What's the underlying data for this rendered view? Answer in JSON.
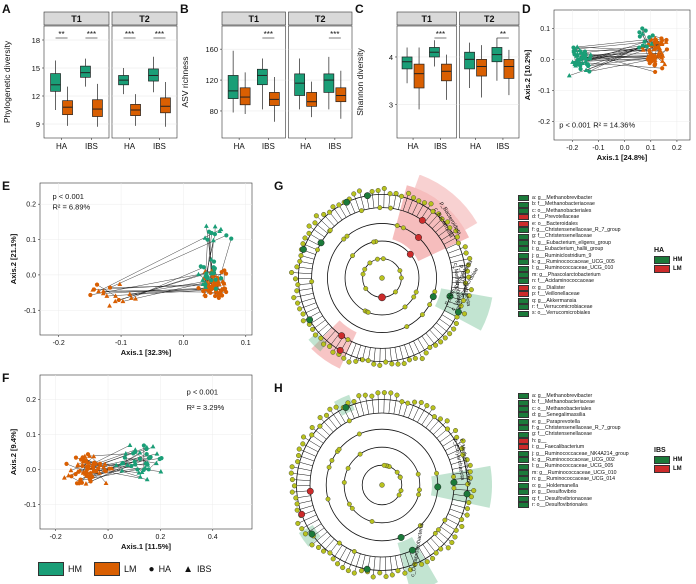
{
  "panels": {
    "A": {
      "label": "A",
      "ylabel": "Phylogenetic diversity",
      "facets": [
        "T1",
        "T2"
      ],
      "xticks": [
        "HA",
        "IBS"
      ],
      "yticks": [
        "9",
        "12",
        "15",
        "18"
      ],
      "ylim": [
        7.5,
        19.5
      ],
      "sig": [
        [
          "**",
          "***"
        ],
        [
          "***",
          "***"
        ]
      ],
      "boxes": [
        [
          [
            10.5,
            12.5,
            13.2,
            14.4,
            15.8
          ],
          [
            8.8,
            10.0,
            10.8,
            11.5,
            13.0
          ],
          [
            13.0,
            14.0,
            14.5,
            15.2,
            16.0
          ],
          [
            8.7,
            9.8,
            10.6,
            11.6,
            13.3
          ]
        ],
        [
          [
            12.2,
            13.2,
            13.7,
            14.2,
            15.0
          ],
          [
            8.8,
            9.9,
            10.5,
            11.1,
            12.2
          ],
          [
            12.4,
            13.6,
            14.2,
            14.9,
            16.2
          ],
          [
            8.7,
            10.2,
            10.9,
            11.8,
            13.5
          ]
        ]
      ]
    },
    "B": {
      "label": "B",
      "ylabel": "ASV richness",
      "facets": [
        "T1",
        "T2"
      ],
      "xticks": [
        "HA",
        "IBS"
      ],
      "yticks": [
        "80",
        "120",
        "160"
      ],
      "ylim": [
        45,
        190
      ],
      "sig": [
        [
          "",
          "***"
        ],
        [
          "",
          "***"
        ]
      ],
      "boxes": [
        [
          [
            78,
            96,
            106,
            126,
            158
          ],
          [
            76,
            88,
            98,
            110,
            130
          ],
          [
            82,
            114,
            126,
            134,
            148
          ],
          [
            66,
            87,
            95,
            104,
            124
          ]
        ],
        [
          [
            82,
            100,
            116,
            128,
            148
          ],
          [
            72,
            86,
            92,
            104,
            118
          ],
          [
            82,
            104,
            120,
            128,
            150
          ],
          [
            70,
            92,
            100,
            110,
            132
          ]
        ]
      ]
    },
    "C": {
      "label": "C",
      "ylabel": "Shannon diversity",
      "facets": [
        "T1",
        "T2"
      ],
      "xticks": [
        "HA",
        "IBS"
      ],
      "yticks": [
        "3",
        "4"
      ],
      "ylim": [
        2.3,
        4.65
      ],
      "sig": [
        [
          "",
          "***"
        ],
        [
          "",
          "**"
        ]
      ],
      "boxes": [
        [
          [
            3.45,
            3.75,
            3.9,
            4.0,
            4.2
          ],
          [
            2.9,
            3.35,
            3.65,
            3.85,
            4.2
          ],
          [
            3.8,
            4.0,
            4.1,
            4.2,
            4.35
          ],
          [
            3.1,
            3.5,
            3.7,
            3.85,
            4.05
          ]
        ],
        [
          [
            3.35,
            3.75,
            3.95,
            4.1,
            4.3
          ],
          [
            3.15,
            3.6,
            3.8,
            3.95,
            4.25
          ],
          [
            3.5,
            3.9,
            4.05,
            4.2,
            4.4
          ],
          [
            3.2,
            3.55,
            3.8,
            3.95,
            4.15
          ]
        ]
      ]
    },
    "D": {
      "label": "D",
      "xlabel": "Axis.1   [24.8%]",
      "ylabel": "Axis.2   [10.2%]",
      "pval": "p < 0.001",
      "r2": "R² = 14.36%",
      "xticks": [
        "-0.2",
        "-0.1",
        "0.0",
        "0.1",
        "0.2"
      ],
      "yticks": [
        "-0.2",
        "-0.1",
        "0.0",
        "0.1"
      ]
    },
    "E": {
      "label": "E",
      "xlabel": "Axis.1   [32.3%]",
      "ylabel": "Axis.2   [21.1%]",
      "pval": "p < 0.001",
      "r2": "R² = 6.89%",
      "xticks": [
        "-0.2",
        "-0.1",
        "0.0",
        "0.1"
      ],
      "yticks": [
        "-0.1",
        "0.0",
        "0.1",
        "0.2"
      ]
    },
    "F": {
      "label": "F",
      "xlabel": "Axis.1   [11.5%]",
      "ylabel": "Axis.2   [9.4%]",
      "pval": "p < 0.001",
      "r2": "R² = 3.29%",
      "xticks": [
        "-0.2",
        "0.0",
        "0.2",
        "0.4"
      ],
      "yticks": [
        "-0.1",
        "0.0",
        "0.1",
        "0.2"
      ]
    },
    "G": {
      "label": "G",
      "group_title": "HA",
      "group_items": [
        "HM",
        "LM"
      ],
      "clade_labels": [
        "p_Bacteroidota",
        "c_Bacteroidia",
        "c_Methanobacteria",
        "p_Euryarchaeota",
        "p_Verrucomicrobiota",
        "c_Verrucomicrobiae",
        "d"
      ],
      "legend": [
        {
          "text": "a: g__Methanobrevibacter",
          "c": "green"
        },
        {
          "text": "b: f__Methanobacteriaceae",
          "c": "green"
        },
        {
          "text": "c: o__Methanobacteriales",
          "c": "green"
        },
        {
          "text": "d: f__Prevotellaceae",
          "c": "red"
        },
        {
          "text": "e: o__Bacteroidales",
          "c": "red"
        },
        {
          "text": "f: g__Christensenellaceae_R_7_group",
          "c": "green"
        },
        {
          "text": "g: f__Christensenellaceae",
          "c": "green"
        },
        {
          "text": "h: g__Eubacterium_eligens_group",
          "c": "green"
        },
        {
          "text": "i: g__Eubacterium_hallii_group",
          "c": "green"
        },
        {
          "text": "j: g__Ruminiclostridium_9",
          "c": "green"
        },
        {
          "text": "k: g__Ruminococcaceae_UCG_005",
          "c": "green"
        },
        {
          "text": "l: g__Ruminococcaceae_UCG_010",
          "c": "green"
        },
        {
          "text": "m: g__Phascolarctobacterium",
          "c": "green"
        },
        {
          "text": "n: f__Acidaminococcaceae",
          "c": "green"
        },
        {
          "text": "o: g__Dialister",
          "c": "red"
        },
        {
          "text": "p: f__Veillonellaceae",
          "c": "red"
        },
        {
          "text": "q: g__Akkermansia",
          "c": "green"
        },
        {
          "text": "r: f__Verrucomicrobiaceae",
          "c": "green"
        },
        {
          "text": "s: o__Verrucomicrobiales",
          "c": "green"
        }
      ]
    },
    "H": {
      "label": "H",
      "group_title": "IBS",
      "group_items": [
        "HM",
        "LM"
      ],
      "clade_labels": [
        "p_Euryarchaeota",
        "c_Methanobacteria",
        "c_Deltaproteobacteria"
      ],
      "legend": [
        {
          "text": "a: g__Methanobrevibacter",
          "c": "green"
        },
        {
          "text": "b: f__Methanobacteriaceae",
          "c": "green"
        },
        {
          "text": "c: o__Methanobacteriales",
          "c": "green"
        },
        {
          "text": "d: g__Senegalimassilia",
          "c": "green"
        },
        {
          "text": "e: g__Paraprevotella",
          "c": "green"
        },
        {
          "text": "f: g__Christensenellaceae_R_7_group",
          "c": "green"
        },
        {
          "text": "g: f__Christensenellaceae",
          "c": "green"
        },
        {
          "text": "h: g__",
          "c": "red"
        },
        {
          "text": "i: g__Faecalibacterium",
          "c": "red"
        },
        {
          "text": "j: g__Ruminococcaceae_NK4A214_group",
          "c": "green"
        },
        {
          "text": "k: g__Ruminococcaceae_UCG_002",
          "c": "green"
        },
        {
          "text": "l: g__Ruminococcaceae_UCG_005",
          "c": "green"
        },
        {
          "text": "m: g__Ruminococcaceae_UCG_010",
          "c": "green"
        },
        {
          "text": "n: g__Ruminococcaceae_UCG_014",
          "c": "green"
        },
        {
          "text": "o: g__Holdemanella",
          "c": "green"
        },
        {
          "text": "p: g__Desulfovibrio",
          "c": "green"
        },
        {
          "text": "q: f__Desulfovibrionaceae",
          "c": "green"
        },
        {
          "text": "r: o__Desulfovibrionales",
          "c": "green"
        }
      ]
    }
  },
  "bottom_legend": {
    "hm": "HM",
    "lm": "LM",
    "ha": "HA",
    "ibs": "IBS"
  },
  "colors": {
    "hm": "#1a9e77",
    "lm": "#d95f02",
    "lefse_green": "#1b7a3a",
    "lefse_red": "#cc2b2b",
    "node": "#b8c21e",
    "strip": "#d9d9d9"
  },
  "chart_data": [
    {
      "type": "box",
      "panel": "A",
      "title": "",
      "ylabel": "Phylogenetic diversity",
      "facets": [
        "T1",
        "T2"
      ],
      "categories": [
        "HA",
        "IBS"
      ],
      "groups": [
        "HM",
        "LM"
      ],
      "ylim": [
        7.5,
        19.5
      ]
    },
    {
      "type": "box",
      "panel": "B",
      "title": "",
      "ylabel": "ASV richness",
      "facets": [
        "T1",
        "T2"
      ],
      "categories": [
        "HA",
        "IBS"
      ],
      "groups": [
        "HM",
        "LM"
      ],
      "ylim": [
        45,
        190
      ]
    },
    {
      "type": "box",
      "panel": "C",
      "title": "",
      "ylabel": "Shannon diversity",
      "facets": [
        "T1",
        "T2"
      ],
      "categories": [
        "HA",
        "IBS"
      ],
      "groups": [
        "HM",
        "LM"
      ],
      "ylim": [
        2.3,
        4.65
      ]
    },
    {
      "type": "scatter",
      "panel": "D",
      "xlabel": "Axis.1 [24.8%]",
      "ylabel": "Axis.2 [10.2%]",
      "xlim": [
        -0.27,
        0.25
      ],
      "ylim": [
        -0.26,
        0.16
      ]
    },
    {
      "type": "scatter",
      "panel": "E",
      "xlabel": "Axis.1 [32.3%]",
      "ylabel": "Axis.2 [21.1%]",
      "xlim": [
        -0.23,
        0.11
      ],
      "ylim": [
        -0.17,
        0.26
      ]
    },
    {
      "type": "scatter",
      "panel": "F",
      "xlabel": "Axis.1 [11.5%]",
      "ylabel": "Axis.2 [9.4%]",
      "xlim": [
        -0.26,
        0.55
      ],
      "ylim": [
        -0.17,
        0.27
      ]
    }
  ]
}
